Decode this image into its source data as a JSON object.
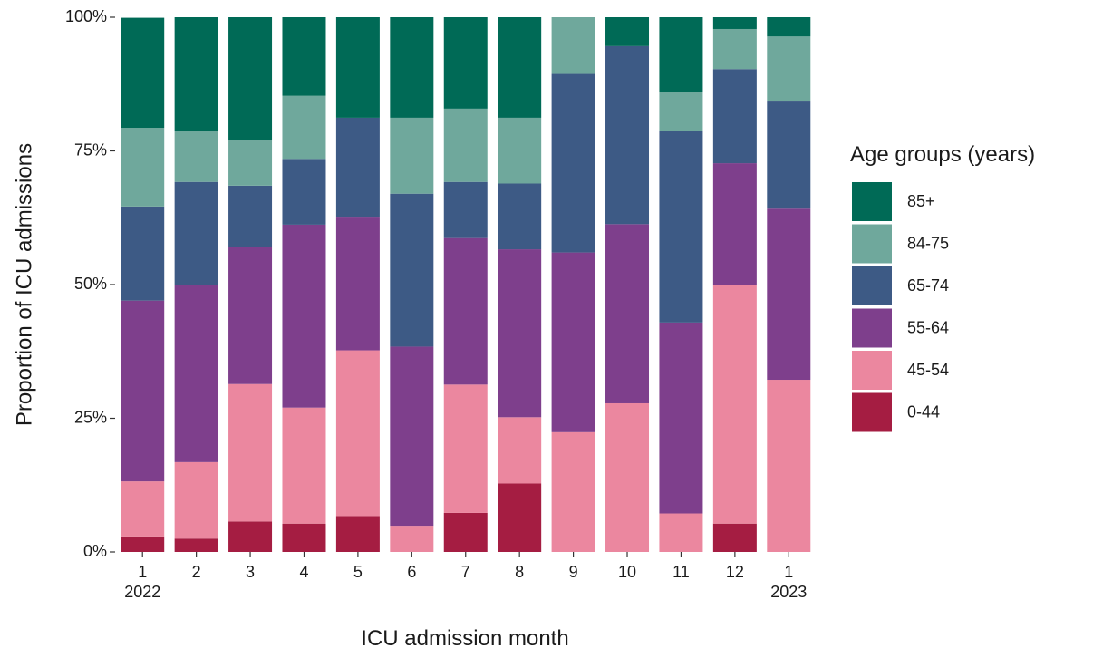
{
  "chart_data": {
    "type": "stacked_bar",
    "x_label": "ICU admission month",
    "y_label": "Proportion of ICU admissions",
    "categories": [
      "1\n2022",
      "2",
      "3",
      "4",
      "5",
      "6",
      "7",
      "8",
      "9",
      "10",
      "11",
      "12",
      "1\n2023"
    ],
    "series": [
      {
        "name": "0-44",
        "color": "#a51d42",
        "values": [
          2.9,
          2.5,
          5.7,
          5.3,
          6.7,
          0,
          7.3,
          12.8,
          0,
          0,
          0,
          5.3,
          0
        ]
      },
      {
        "name": "45-54",
        "color": "#eb879f",
        "values": [
          10.3,
          14.3,
          25.7,
          21.7,
          31.0,
          4.9,
          24.0,
          12.4,
          22.4,
          27.8,
          7.2,
          44.7,
          32.2
        ]
      },
      {
        "name": "55-64",
        "color": "#7e3f8c",
        "values": [
          33.8,
          33.2,
          25.7,
          34.2,
          25.0,
          33.5,
          27.4,
          31.4,
          33.6,
          33.5,
          35.7,
          22.7,
          32.0
        ]
      },
      {
        "name": "65-74",
        "color": "#3d5a85",
        "values": [
          17.6,
          19.2,
          11.4,
          12.3,
          18.5,
          28.6,
          10.5,
          12.3,
          33.4,
          33.3,
          35.9,
          17.6,
          20.2
        ]
      },
      {
        "name": "84-75",
        "color": "#6fa89c",
        "values": [
          14.7,
          9.6,
          8.6,
          11.8,
          0,
          14.2,
          13.7,
          12.3,
          10.6,
          0,
          7.2,
          7.5,
          12.0
        ]
      },
      {
        "name": "85+",
        "color": "#006a56",
        "values": [
          20.6,
          21.2,
          22.9,
          14.7,
          18.8,
          18.8,
          17.1,
          18.8,
          0,
          5.4,
          14.0,
          2.2,
          3.6
        ]
      }
    ],
    "legend_title": "Age groups (years)",
    "legend": "right",
    "ylim": [
      0,
      100
    ],
    "yticks": [
      {
        "value": 0,
        "label": "0%"
      },
      {
        "value": 25,
        "label": "25%"
      },
      {
        "value": 50,
        "label": "50%"
      },
      {
        "value": 75,
        "label": "75%"
      },
      {
        "value": 100,
        "label": "100%"
      }
    ]
  }
}
